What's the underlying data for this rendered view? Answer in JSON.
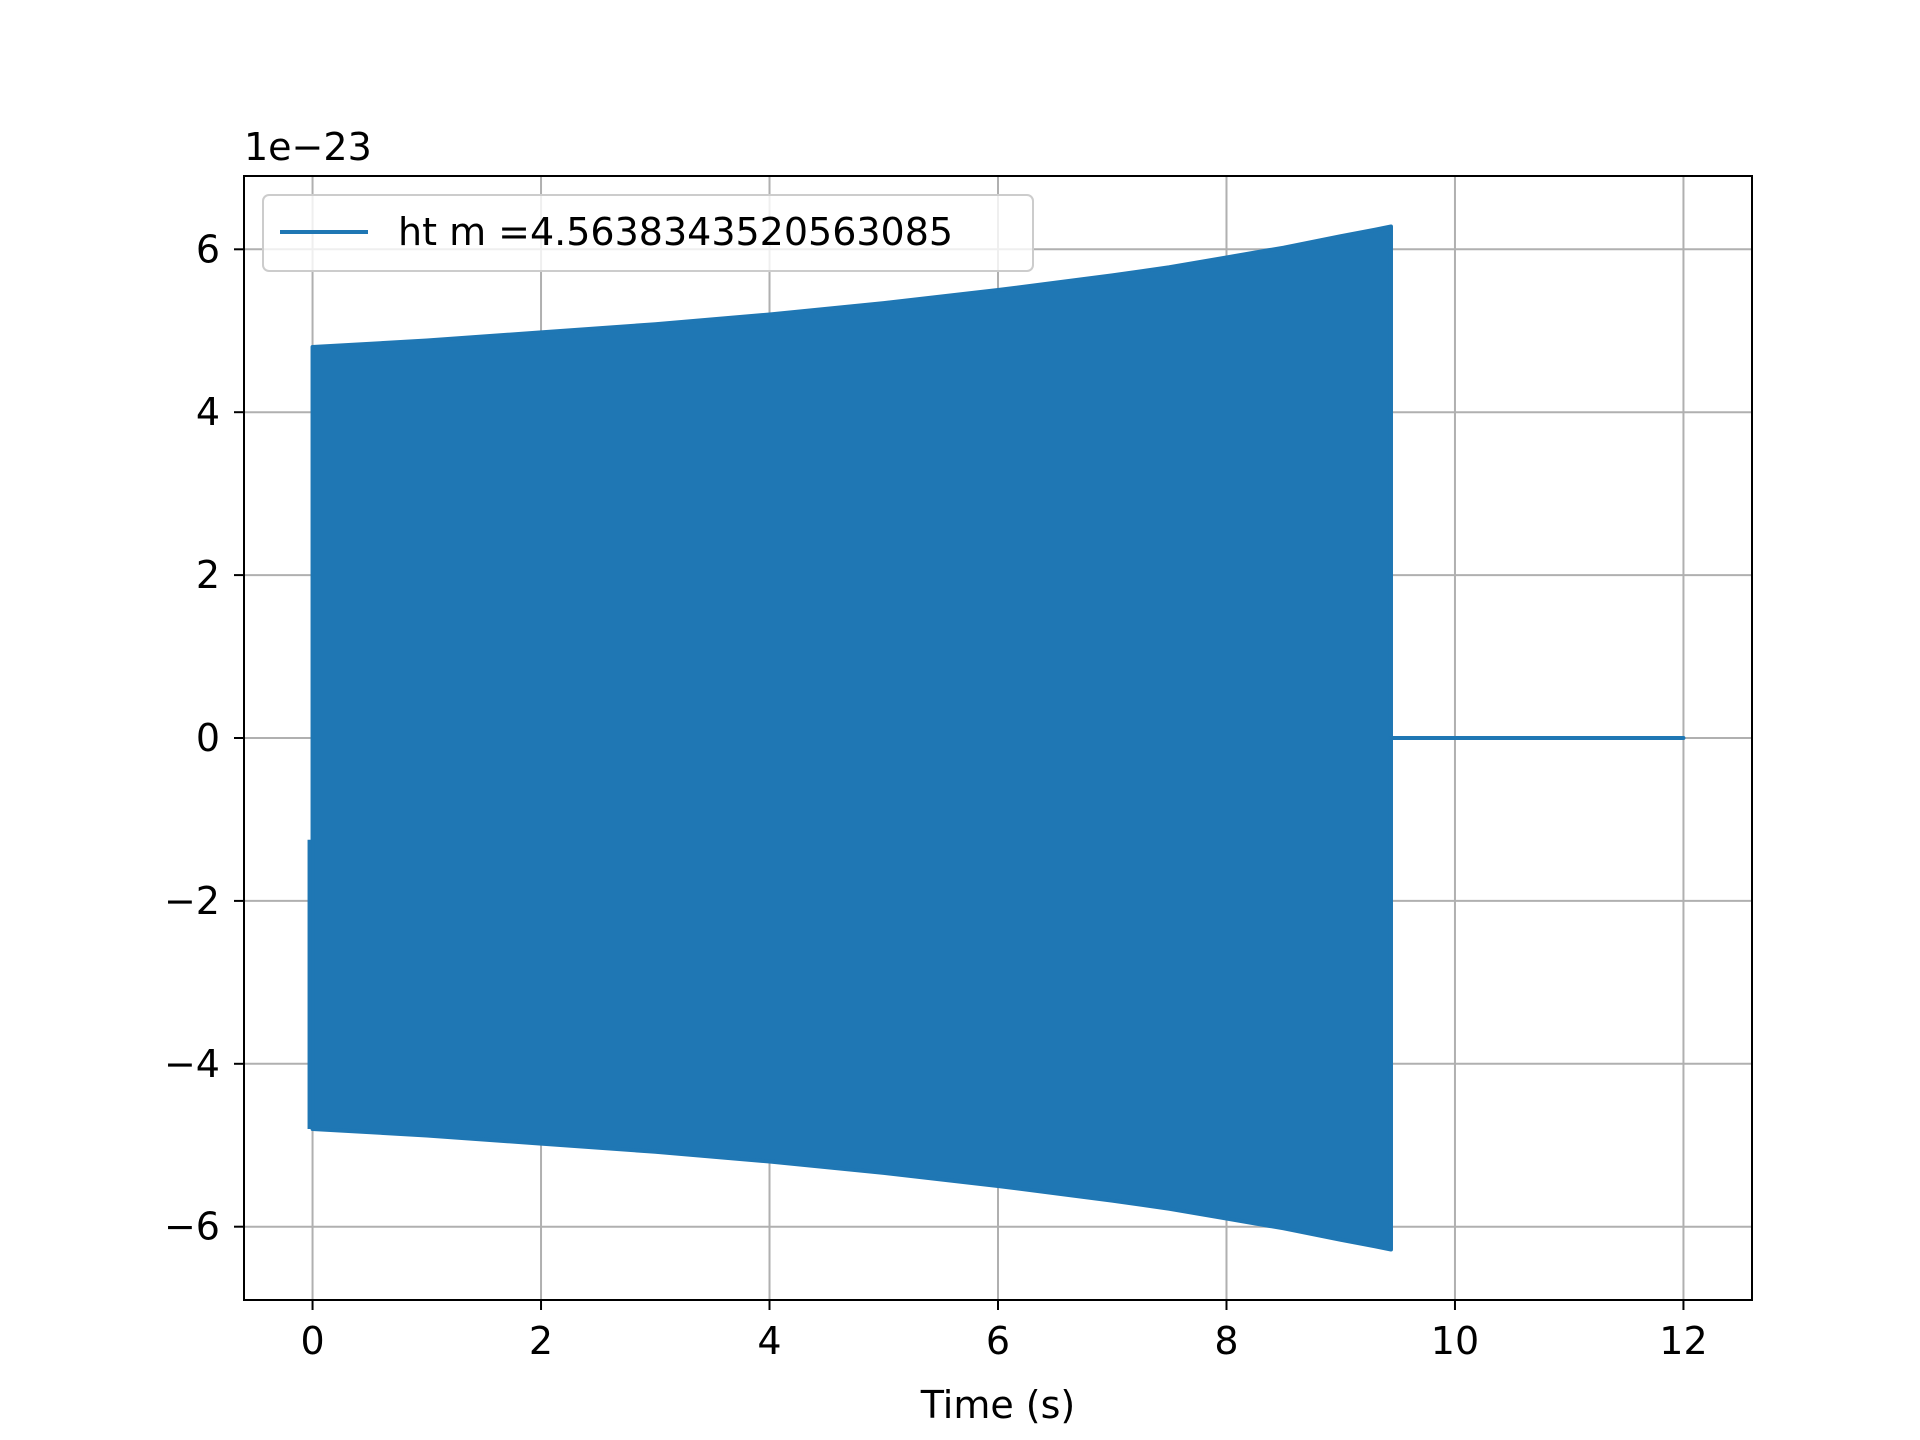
{
  "chart_data": {
    "type": "line",
    "title": "",
    "xlabel": "Time (s)",
    "ylabel": "",
    "y_offset_label": "1e−23",
    "xlim": [
      -0.6,
      12.6
    ],
    "ylim": [
      -6.9,
      6.9
    ],
    "x_ticks": [
      0,
      2,
      4,
      6,
      8,
      10,
      12
    ],
    "x_tick_labels": [
      "0",
      "2",
      "4",
      "6",
      "8",
      "10",
      "12"
    ],
    "y_ticks": [
      -6,
      -4,
      -2,
      0,
      2,
      4,
      6
    ],
    "y_tick_labels": [
      "−6",
      "−4",
      "−2",
      "0",
      "2",
      "4",
      "6"
    ],
    "grid": true,
    "legend_placement": "upper-left",
    "color": "#1f77b4",
    "series": [
      {
        "name": "ht m =4.5638343520563085",
        "description_free": true,
        "signal_start": 0,
        "signal_end": 9.44,
        "series_end": 12.0,
        "envelope_x": [
          0,
          1,
          2,
          3,
          4,
          5,
          6,
          7,
          7.5,
          8,
          8.5,
          9,
          9.3,
          9.44
        ],
        "envelope_upper": [
          4.8,
          4.88,
          4.98,
          5.08,
          5.2,
          5.34,
          5.5,
          5.68,
          5.78,
          5.9,
          6.02,
          6.16,
          6.24,
          6.28
        ],
        "envelope_lower": [
          -4.8,
          -4.88,
          -4.98,
          -5.08,
          -5.2,
          -5.34,
          -5.5,
          -5.68,
          -5.78,
          -5.9,
          -6.02,
          -6.16,
          -6.24,
          -6.28
        ],
        "start_value": -1.25,
        "tail_value": 0
      }
    ]
  }
}
